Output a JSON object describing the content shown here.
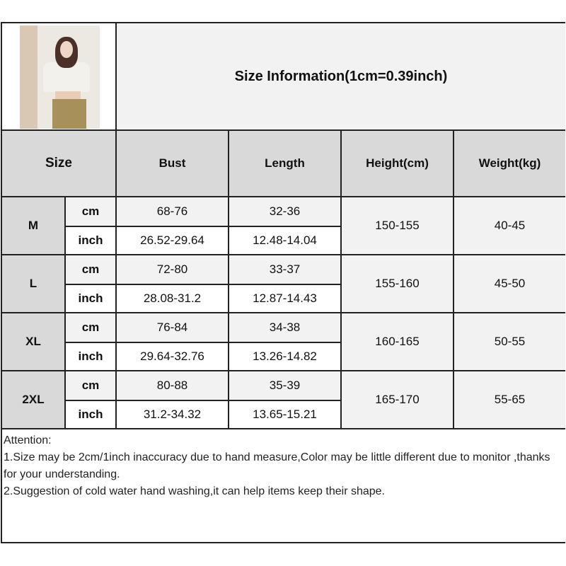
{
  "title": "Size Information(1cm=0.39inch)",
  "headers": {
    "size": "Size",
    "bust": "Bust",
    "length": "Length",
    "height": "Height(cm)",
    "weight": "Weight(kg)"
  },
  "units": {
    "cm": "cm",
    "inch": "inch"
  },
  "rows": [
    {
      "size": "M",
      "bust_cm": "68-76",
      "length_cm": "32-36",
      "bust_in": "26.52-29.64",
      "length_in": "12.48-14.04",
      "height": "150-155",
      "weight": "40-45"
    },
    {
      "size": "L",
      "bust_cm": "72-80",
      "length_cm": "33-37",
      "bust_in": "28.08-31.2",
      "length_in": "12.87-14.43",
      "height": "155-160",
      "weight": "45-50"
    },
    {
      "size": "XL",
      "bust_cm": "76-84",
      "length_cm": "34-38",
      "bust_in": "29.64-32.76",
      "length_in": "13.26-14.82",
      "height": "160-165",
      "weight": "50-55"
    },
    {
      "size": "2XL",
      "bust_cm": "80-88",
      "length_cm": "35-39",
      "bust_in": "31.2-34.32",
      "length_in": "13.65-15.21",
      "height": "165-170",
      "weight": "55-65"
    }
  ],
  "notes": {
    "heading": "Attention:",
    "line1": "1.Size may be 2cm/1inch inaccuracy due to hand measure,Color may be little different due to monitor ,thanks for your understanding.",
    "line2": "2.Suggestion of cold water hand washing,it can help items keep their shape."
  },
  "colors": {
    "header_gray": "#d9d9d9",
    "light_gray": "#f2f2f2",
    "border": "#222222"
  }
}
